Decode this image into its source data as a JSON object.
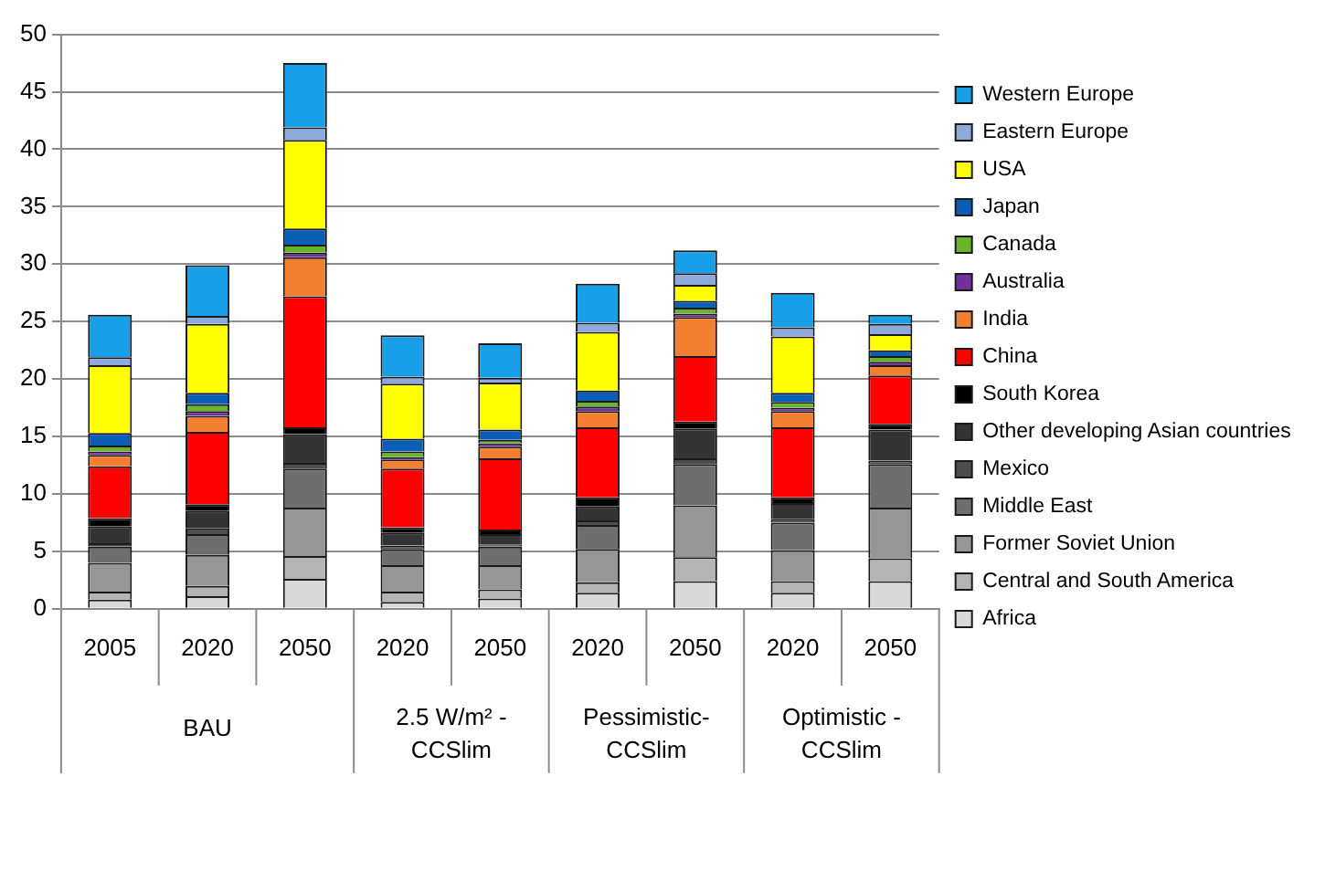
{
  "chart_data": {
    "type": "bar",
    "stacked": true,
    "categories": [
      "2005",
      "2020",
      "2050",
      "2020",
      "2050",
      "2020",
      "2050",
      "2020",
      "2050"
    ],
    "annotations": [
      "BAU",
      "2.5 W/m² -CCSlim",
      "Pessimistic-CCSlim",
      "Optimistic -CCSlim"
    ],
    "ylim": [
      0,
      50
    ],
    "yticks": [
      0,
      5,
      10,
      15,
      20,
      25,
      30,
      35,
      40,
      45,
      50
    ],
    "grid": "y",
    "legend": "right",
    "series": [
      {
        "name": "Africa",
        "color": "#d9d9d9",
        "values": [
          0.8,
          1.1,
          2.6,
          0.6,
          0.9,
          1.4,
          2.4,
          1.4,
          2.4
        ]
      },
      {
        "name": "Central and South America",
        "color": "#b4b4b4",
        "values": [
          0.7,
          0.9,
          2.0,
          0.9,
          0.8,
          0.9,
          2.1,
          1.0,
          2.0
        ]
      },
      {
        "name": "Former Soviet Union",
        "color": "#969696",
        "values": [
          2.5,
          2.7,
          4.2,
          2.3,
          2.1,
          2.9,
          4.5,
          2.7,
          4.4
        ]
      },
      {
        "name": "Middle East",
        "color": "#6e6e6e",
        "values": [
          1.4,
          1.8,
          3.4,
          1.4,
          1.6,
          2.1,
          3.6,
          2.4,
          3.8
        ]
      },
      {
        "name": "Mexico",
        "color": "#4d4d4d",
        "values": [
          0.3,
          0.5,
          0.5,
          0.3,
          0.2,
          0.4,
          0.5,
          0.3,
          0.3
        ]
      },
      {
        "name": "Other developing Asian countries",
        "color": "#333333",
        "values": [
          1.5,
          1.5,
          2.5,
          1.1,
          0.9,
          1.2,
          2.6,
          1.4,
          2.7
        ]
      },
      {
        "name": "South Korea",
        "color": "#000000",
        "values": [
          0.7,
          0.6,
          0.6,
          0.5,
          0.4,
          0.8,
          0.6,
          0.5,
          0.5
        ]
      },
      {
        "name": "China",
        "color": "#ff0000",
        "values": [
          4.5,
          6.3,
          11.4,
          5.1,
          6.2,
          6.1,
          5.7,
          6.1,
          4.2
        ]
      },
      {
        "name": "India",
        "color": "#f28030",
        "values": [
          1.0,
          1.4,
          3.4,
          0.8,
          1.0,
          1.4,
          3.4,
          1.4,
          0.9
        ]
      },
      {
        "name": "Australia",
        "color": "#7030a0",
        "values": [
          0.3,
          0.4,
          0.4,
          0.2,
          0.3,
          0.4,
          0.3,
          0.3,
          0.3
        ]
      },
      {
        "name": "Canada",
        "color": "#6ab42d",
        "values": [
          0.5,
          0.6,
          0.7,
          0.5,
          0.3,
          0.5,
          0.5,
          0.5,
          0.5
        ]
      },
      {
        "name": "Japan",
        "color": "#0b5eb5",
        "values": [
          1.1,
          1.0,
          1.4,
          1.1,
          0.9,
          0.9,
          0.6,
          0.8,
          0.5
        ]
      },
      {
        "name": "USA",
        "color": "#ffff00",
        "values": [
          5.9,
          6.0,
          7.7,
          4.8,
          4.1,
          5.1,
          1.4,
          4.9,
          1.4
        ]
      },
      {
        "name": "Eastern Europe",
        "color": "#8eaadb",
        "values": [
          0.7,
          0.7,
          1.1,
          0.6,
          0.4,
          0.8,
          1.0,
          0.8,
          0.9
        ]
      },
      {
        "name": "Western Europe",
        "color": "#17a0e8",
        "values": [
          3.7,
          4.4,
          5.6,
          3.6,
          3.0,
          3.4,
          2.0,
          3.0,
          0.8
        ]
      }
    ]
  }
}
